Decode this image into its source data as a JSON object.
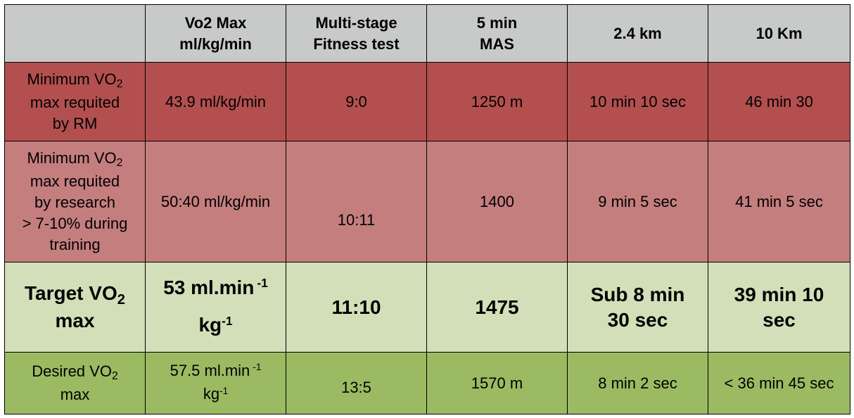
{
  "headers": {
    "col1_line1": "Vo2 Max",
    "col1_line2": "ml/kg/min",
    "col2_line1": "Multi-stage",
    "col2_line2": "Fitness test",
    "col3_line1": "5 min",
    "col3_line2": "MAS",
    "col4": "2.4 km",
    "col5": "10 Km"
  },
  "rows": {
    "rm": {
      "label_a": "Minimum VO",
      "label_sub": "2",
      "label_b": "max requited",
      "label_c": "by RM",
      "vo2": "43.9 ml/kg/min",
      "multistage": "9:0",
      "mas": "1250 m",
      "km24": "10 min 10 sec",
      "km10": "46 min 30"
    },
    "research": {
      "label_a": "Minimum VO",
      "label_sub": "2",
      "label_b": "max requited",
      "label_c": "by research",
      "label_d": "> 7-10% during",
      "label_e": "training",
      "vo2": "50:40 ml/kg/min",
      "multistage": "10:11",
      "mas": "1400",
      "km24": "9 min 5 sec",
      "km10": "41 min 5 sec"
    },
    "target": {
      "label_a": "Target VO",
      "label_sub": "2",
      "label_b": "max",
      "vo2_a": "53 ml.min",
      "vo2_sup1": "-1",
      "vo2_b": "kg",
      "vo2_sup2": "-1",
      "multistage": "11:10",
      "mas": "1475",
      "km24_a": "Sub 8 min",
      "km24_b": "30 sec",
      "km10_a": "39 min 10",
      "km10_b": "sec"
    },
    "desired": {
      "label_a": "Desired VO",
      "label_sub": "2",
      "label_b": "max",
      "vo2_a": "57.5 ml.min",
      "vo2_sup1": "-1",
      "vo2_b": "kg",
      "vo2_sup2": "-1",
      "multistage": "13:5",
      "mas": "1570 m",
      "km24": "8 min 2 sec",
      "km10": "< 36 min 45 sec"
    }
  },
  "colors": {
    "header": "#c8c9c9",
    "rm": "#b3504f",
    "research": "#c57e7e",
    "target": "#d3dfb8",
    "desired": "#9bba62"
  }
}
